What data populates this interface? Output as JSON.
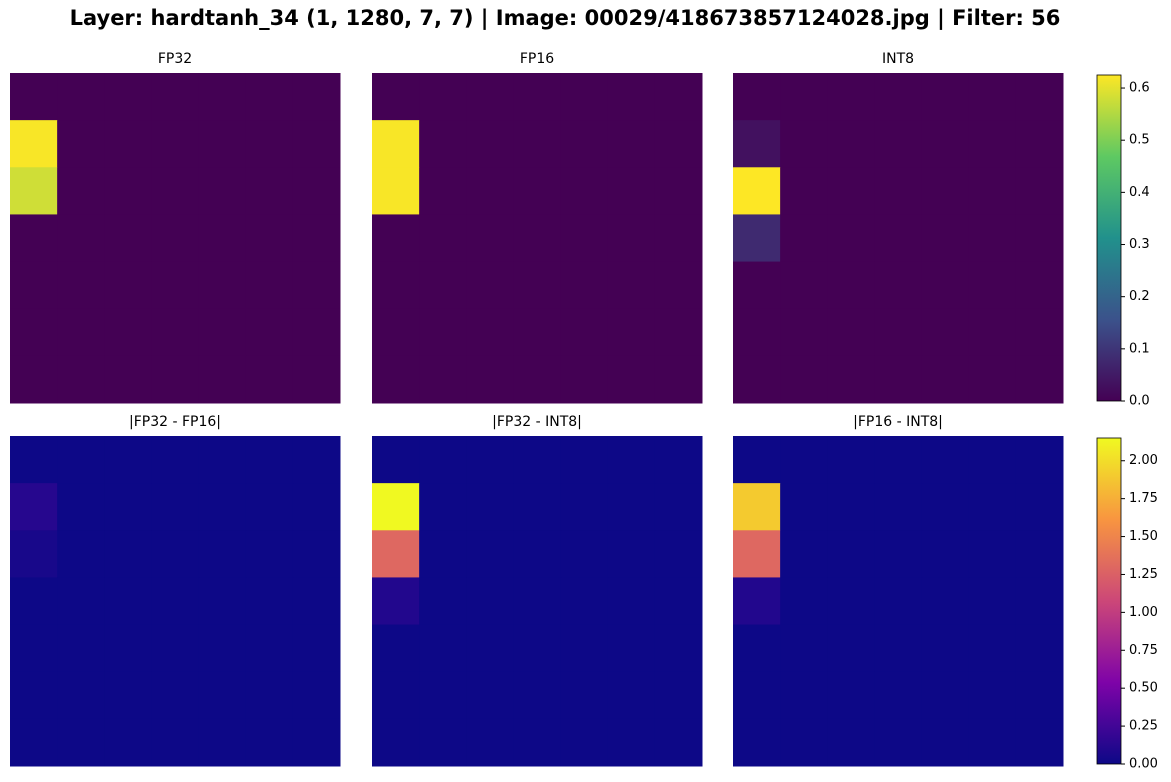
{
  "title": "Layer: hardtanh_34 (1, 1280, 7, 7) | Image: 00029/418673857124028.jpg | Filter: 56",
  "chart_data": [
    {
      "type": "heatmap",
      "title": "FP32",
      "cmap": "viridis",
      "zlim": [
        0,
        0.625
      ],
      "values": [
        [
          0,
          0,
          0,
          0,
          0,
          0,
          0
        ],
        [
          0.62,
          0,
          0,
          0,
          0,
          0,
          0
        ],
        [
          0.58,
          0,
          0,
          0,
          0,
          0,
          0
        ],
        [
          0,
          0,
          0,
          0,
          0,
          0,
          0
        ],
        [
          0,
          0,
          0,
          0,
          0,
          0,
          0
        ],
        [
          0,
          0,
          0,
          0,
          0,
          0,
          0
        ],
        [
          0,
          0,
          0,
          0,
          0,
          0,
          0
        ]
      ]
    },
    {
      "type": "heatmap",
      "title": "FP16",
      "cmap": "viridis",
      "zlim": [
        0,
        0.625
      ],
      "values": [
        [
          0,
          0,
          0,
          0,
          0,
          0,
          0
        ],
        [
          0.62,
          0,
          0,
          0,
          0,
          0,
          0
        ],
        [
          0.62,
          0,
          0,
          0,
          0,
          0,
          0
        ],
        [
          0,
          0,
          0,
          0,
          0,
          0,
          0
        ],
        [
          0,
          0,
          0,
          0,
          0,
          0,
          0
        ],
        [
          0,
          0,
          0,
          0,
          0,
          0,
          0
        ],
        [
          0,
          0,
          0,
          0,
          0,
          0,
          0
        ]
      ]
    },
    {
      "type": "heatmap",
      "title": "INT8",
      "cmap": "viridis",
      "zlim": [
        0,
        0.625
      ],
      "values": [
        [
          0,
          0,
          0,
          0,
          0,
          0,
          0
        ],
        [
          0.03,
          0,
          0,
          0,
          0,
          0,
          0
        ],
        [
          0.625,
          0,
          0,
          0,
          0,
          0,
          0
        ],
        [
          0.08,
          0,
          0,
          0,
          0,
          0,
          0
        ],
        [
          0,
          0,
          0,
          0,
          0,
          0,
          0
        ],
        [
          0,
          0,
          0,
          0,
          0,
          0,
          0
        ],
        [
          0,
          0,
          0,
          0,
          0,
          0,
          0
        ]
      ]
    },
    {
      "type": "heatmap",
      "title": "|FP32 - FP16|",
      "cmap": "plasma",
      "zlim": [
        0,
        2.15
      ],
      "values": [
        [
          0,
          0,
          0,
          0,
          0,
          0,
          0
        ],
        [
          0.12,
          0,
          0,
          0,
          0,
          0,
          0
        ],
        [
          0.05,
          0,
          0,
          0,
          0,
          0,
          0
        ],
        [
          0,
          0,
          0,
          0,
          0,
          0,
          0
        ],
        [
          0,
          0,
          0,
          0,
          0,
          0,
          0
        ],
        [
          0,
          0,
          0,
          0,
          0,
          0,
          0
        ],
        [
          0,
          0,
          0,
          0,
          0,
          0,
          0
        ]
      ]
    },
    {
      "type": "heatmap",
      "title": "|FP32 - INT8|",
      "cmap": "plasma",
      "zlim": [
        0,
        2.15
      ],
      "values": [
        [
          0,
          0,
          0,
          0,
          0,
          0,
          0
        ],
        [
          2.15,
          0,
          0,
          0,
          0,
          0,
          0
        ],
        [
          1.3,
          0,
          0,
          0,
          0,
          0,
          0
        ],
        [
          0.1,
          0,
          0,
          0,
          0,
          0,
          0
        ],
        [
          0,
          0,
          0,
          0,
          0,
          0,
          0
        ],
        [
          0,
          0,
          0,
          0,
          0,
          0,
          0
        ],
        [
          0,
          0,
          0,
          0,
          0,
          0,
          0
        ]
      ]
    },
    {
      "type": "heatmap",
      "title": "|FP16 - INT8|",
      "cmap": "plasma",
      "zlim": [
        0,
        2.15
      ],
      "values": [
        [
          0,
          0,
          0,
          0,
          0,
          0,
          0
        ],
        [
          1.9,
          0,
          0,
          0,
          0,
          0,
          0
        ],
        [
          1.3,
          0,
          0,
          0,
          0,
          0,
          0
        ],
        [
          0.1,
          0,
          0,
          0,
          0,
          0,
          0
        ],
        [
          0,
          0,
          0,
          0,
          0,
          0,
          0
        ],
        [
          0,
          0,
          0,
          0,
          0,
          0,
          0
        ],
        [
          0,
          0,
          0,
          0,
          0,
          0,
          0
        ]
      ]
    },
    {
      "type": "colorbar",
      "cmap": "viridis",
      "ylim": [
        0,
        0.625
      ],
      "yticks": [
        {
          "value": 0,
          "label": "0.0"
        },
        0.1,
        0.2,
        0.3,
        0.4,
        0.5,
        0.6
      ]
    },
    {
      "type": "colorbar",
      "cmap": "plasma",
      "ylim": [
        0,
        2.15
      ],
      "yticks": [
        {
          "value": 0,
          "label": "0.00"
        },
        0.25,
        {
          "value": 0.5,
          "label": "0.50"
        },
        0.75,
        {
          "value": 1,
          "label": "1.00"
        },
        1.25,
        {
          "value": 1.5,
          "label": "1.50"
        },
        1.75,
        {
          "value": 2,
          "label": "2.00"
        }
      ]
    }
  ]
}
